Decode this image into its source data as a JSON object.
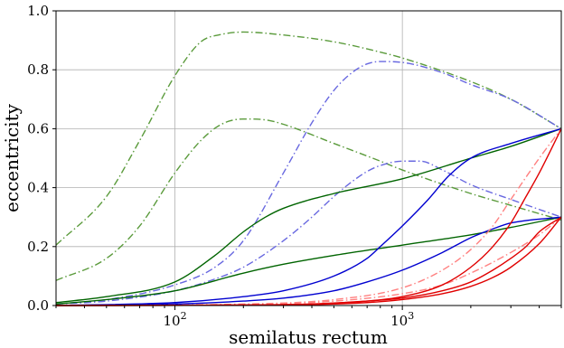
{
  "chart_data": {
    "type": "line",
    "xlabel": "semilatus rectum",
    "ylabel": "eccentricity",
    "xscale": "log",
    "xlim": [
      30,
      5000
    ],
    "ylim": [
      0.0,
      1.0
    ],
    "grid": true,
    "yticks": [
      "0.0",
      "0.2",
      "0.4",
      "0.6",
      "0.8",
      "1.0"
    ],
    "xticks": [
      {
        "value": 100,
        "base": "10",
        "exp": "2"
      },
      {
        "value": 1000,
        "base": "10",
        "exp": "3"
      }
    ],
    "series": [
      {
        "color": "#5b9b3c",
        "style": "dashdot",
        "x": [
          30,
          50,
          70,
          100,
          130,
          160,
          200,
          300,
          500,
          800,
          1000,
          2000,
          3000,
          5000
        ],
        "y": [
          0.205,
          0.37,
          0.56,
          0.78,
          0.895,
          0.92,
          0.928,
          0.918,
          0.895,
          0.86,
          0.84,
          0.76,
          0.7,
          0.6
        ]
      },
      {
        "color": "#5b9b3c",
        "style": "dashdot",
        "x": [
          30,
          50,
          70,
          100,
          130,
          160,
          200,
          250,
          300,
          500,
          800,
          1000,
          2000,
          3000,
          5000
        ],
        "y": [
          0.085,
          0.16,
          0.27,
          0.45,
          0.56,
          0.615,
          0.633,
          0.63,
          0.615,
          0.55,
          0.49,
          0.46,
          0.38,
          0.34,
          0.29
        ]
      },
      {
        "color": "#6868e0",
        "style": "dashdot",
        "x": [
          30,
          50,
          100,
          150,
          200,
          300,
          400,
          500,
          600,
          700,
          800,
          1000,
          1500,
          2000,
          3000,
          5000
        ],
        "y": [
          0.005,
          0.02,
          0.07,
          0.13,
          0.22,
          0.45,
          0.62,
          0.73,
          0.79,
          0.82,
          0.828,
          0.825,
          0.79,
          0.75,
          0.7,
          0.6
        ]
      },
      {
        "color": "#6868e0",
        "style": "dashdot",
        "x": [
          30,
          50,
          100,
          150,
          200,
          300,
          400,
          500,
          600,
          700,
          800,
          1000,
          1200,
          1500,
          2000,
          3000,
          5000
        ],
        "y": [
          0.005,
          0.015,
          0.05,
          0.09,
          0.13,
          0.22,
          0.3,
          0.37,
          0.42,
          0.455,
          0.475,
          0.49,
          0.49,
          0.46,
          0.41,
          0.36,
          0.3
        ]
      },
      {
        "color": "#006400",
        "style": "solid",
        "x": [
          30,
          50,
          100,
          150,
          200,
          250,
          300,
          500,
          1000,
          2000,
          3000,
          5000
        ],
        "y": [
          0.01,
          0.03,
          0.08,
          0.17,
          0.25,
          0.3,
          0.33,
          0.38,
          0.43,
          0.5,
          0.54,
          0.6
        ]
      },
      {
        "color": "#006400",
        "style": "solid",
        "x": [
          30,
          50,
          100,
          200,
          300,
          500,
          1000,
          2000,
          3000,
          5000
        ],
        "y": [
          0.005,
          0.02,
          0.05,
          0.11,
          0.14,
          0.17,
          0.205,
          0.24,
          0.265,
          0.3
        ]
      },
      {
        "color": "#0000d0",
        "style": "solid",
        "x": [
          30,
          100,
          200,
          300,
          500,
          700,
          800,
          1000,
          1300,
          1600,
          2000,
          3000,
          5000
        ],
        "y": [
          0.0,
          0.01,
          0.03,
          0.05,
          0.1,
          0.16,
          0.2,
          0.27,
          0.36,
          0.44,
          0.5,
          0.55,
          0.6
        ]
      },
      {
        "color": "#0000d0",
        "style": "solid",
        "x": [
          30,
          100,
          200,
          300,
          500,
          700,
          1000,
          1500,
          2000,
          2500,
          3000,
          5000
        ],
        "y": [
          0.0,
          0.005,
          0.015,
          0.025,
          0.05,
          0.08,
          0.12,
          0.18,
          0.23,
          0.26,
          0.28,
          0.3
        ]
      },
      {
        "color": "#ff8080",
        "style": "dashdot",
        "x": [
          30,
          200,
          500,
          1000,
          1500,
          2000,
          2500,
          3000,
          4000,
          5000
        ],
        "y": [
          0.0,
          0.005,
          0.02,
          0.06,
          0.12,
          0.19,
          0.27,
          0.36,
          0.5,
          0.6
        ]
      },
      {
        "color": "#ff8080",
        "style": "dashdot",
        "x": [
          30,
          200,
          500,
          1000,
          1500,
          2000,
          3000,
          4000,
          5000
        ],
        "y": [
          0.0,
          0.003,
          0.015,
          0.04,
          0.07,
          0.11,
          0.18,
          0.24,
          0.3
        ]
      },
      {
        "color": "#e00000",
        "style": "solid",
        "x": [
          30,
          300,
          700,
          1000,
          1500,
          2000,
          2500,
          3000,
          3500,
          4000,
          5000
        ],
        "y": [
          0.0,
          0.003,
          0.015,
          0.03,
          0.07,
          0.13,
          0.2,
          0.28,
          0.37,
          0.45,
          0.6
        ]
      },
      {
        "color": "#e00000",
        "style": "solid",
        "x": [
          30,
          300,
          700,
          1000,
          1500,
          2000,
          2500,
          3000,
          3500,
          4000,
          5000
        ],
        "y": [
          0.0,
          0.003,
          0.015,
          0.025,
          0.05,
          0.08,
          0.12,
          0.16,
          0.2,
          0.25,
          0.3
        ]
      },
      {
        "color": "#e00000",
        "style": "solid",
        "x": [
          30,
          300,
          700,
          1000,
          1500,
          2000,
          2500,
          3000,
          4000,
          5000
        ],
        "y": [
          0.0,
          0.002,
          0.01,
          0.02,
          0.04,
          0.065,
          0.095,
          0.13,
          0.21,
          0.3
        ]
      }
    ]
  }
}
